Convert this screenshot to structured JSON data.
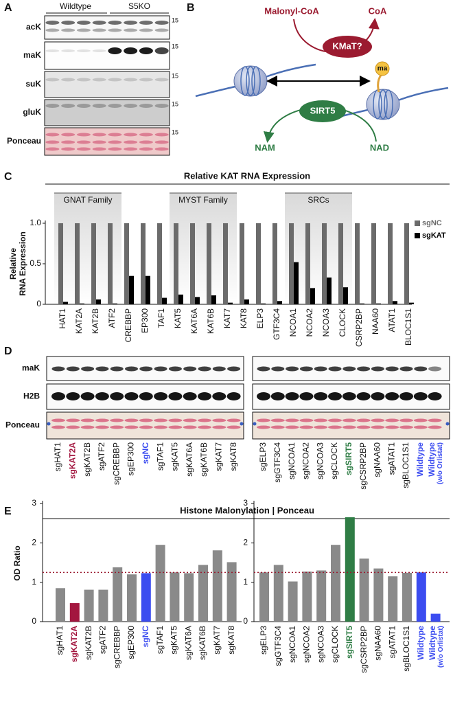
{
  "panel_a": {
    "label": "A",
    "groups": [
      "Wildtype",
      "S5KO"
    ],
    "rows": [
      "acK",
      "maK",
      "suK",
      "gluK",
      "Ponceau"
    ],
    "size_markers": [
      15,
      15,
      15,
      15,
      15
    ]
  },
  "panel_b": {
    "label": "B",
    "donor": "Malonyl-CoA",
    "byproduct": "CoA",
    "writer": "KMaT?",
    "modification": "ma",
    "eraser": "SIRT5",
    "eraser_product": "NAM",
    "eraser_cofactor": "NAD"
  },
  "panel_d": {
    "label": "D",
    "rows": [
      "maK",
      "H2B",
      "Ponceau"
    ],
    "lanes": [
      [
        "sgHAT1",
        "sgKAT2A",
        "sgKAT2B",
        "sgATF2",
        "sgCREBBP",
        "sgEP300",
        "sgNC",
        "sgTAF1",
        "sgKAT5",
        "sgKAT6A",
        "sgKAT6B",
        "sgKAT7",
        "sgKAT8"
      ],
      [
        "sgELP3",
        "sgGTF3C4",
        "sgNCOA1",
        "sgNCOA2",
        "sgNCOA3",
        "sgCLOCK",
        "sgSIRT5",
        "sgCSRP2BP",
        "sgNAA60",
        "sgATAT1",
        "sgBLOC1S1",
        "Wildtype",
        [
          "Wildtype",
          "(w/o Orlistat)"
        ]
      ]
    ],
    "lane_colors": [
      [
        "#111111",
        "#a3163f",
        "#111111",
        "#111111",
        "#111111",
        "#111111",
        "#3b4cf0",
        "#111111",
        "#111111",
        "#111111",
        "#111111",
        "#111111",
        "#111111"
      ],
      [
        "#111111",
        "#111111",
        "#111111",
        "#111111",
        "#111111",
        "#111111",
        "#2f7d45",
        "#111111",
        "#111111",
        "#111111",
        "#111111",
        "#3b4cf0",
        "#3b4cf0"
      ]
    ]
  },
  "chart_data": [
    {
      "type": "bar",
      "panel_label": "C",
      "title": "Relative KAT RNA Expression",
      "ylabel": [
        "Relative",
        "RNA Expression"
      ],
      "group_labels": [
        "GNAT Family",
        "MYST Family",
        "SRCs"
      ],
      "categories": [
        "HAT1",
        "KAT2A",
        "KAT2B",
        "ATF2",
        "CREBBP",
        "EP300",
        "TAF1",
        "KAT5",
        "KAT6A",
        "KAT6B",
        "KAT7",
        "KAT8",
        "ELP3",
        "GTF3C4",
        "NCOA1",
        "NCOA2",
        "NCOA3",
        "CLOCK",
        "CSRP2BP",
        "NAA60",
        "ATAT1",
        "BLOC1S1"
      ],
      "series": [
        {
          "name": "sgNC",
          "color": "#6b6b6b",
          "values": [
            1,
            1,
            1,
            1,
            1,
            1,
            1,
            1,
            1,
            1,
            1,
            1,
            1,
            1,
            1,
            1,
            1,
            1,
            1,
            1,
            1,
            1
          ]
        },
        {
          "name": "sgKAT",
          "color": "#000000",
          "values": [
            0.03,
            0.01,
            0.06,
            0.01,
            0.35,
            0.35,
            0.08,
            0.12,
            0.09,
            0.11,
            0.02,
            0.06,
            0.01,
            0.04,
            0.52,
            0.2,
            0.33,
            0.21,
            0.01,
            0.01,
            0.04,
            0.02
          ]
        }
      ],
      "ylim": [
        0,
        1
      ],
      "yticks": [
        0,
        0.5,
        {
          "value": 1,
          "label": "1.0"
        }
      ],
      "legend": "right"
    },
    {
      "type": "bar",
      "panel_label": "E",
      "title": "Histone Malonylation | Ponceau",
      "ylabel": "OD Ratio",
      "categories": [
        "sgHAT1",
        "sgKAT2A",
        "sgKAT2B",
        "sgATF2",
        "sgCREBBP",
        "sgEP300",
        "sgNC",
        "sgTAF1",
        "sgKAT5",
        "sgKAT6A",
        "sgKAT6B",
        "sgKAT7",
        "sgKAT8"
      ],
      "values": [
        0.85,
        0.47,
        0.81,
        0.81,
        1.38,
        1.2,
        1.23,
        1.95,
        1.25,
        1.23,
        1.44,
        1.81,
        1.51
      ],
      "colors": [
        "#8a8a8a",
        "#a3163f",
        "#8a8a8a",
        "#8a8a8a",
        "#8a8a8a",
        "#8a8a8a",
        "#3b4cf0",
        "#8a8a8a",
        "#8a8a8a",
        "#8a8a8a",
        "#8a8a8a",
        "#8a8a8a",
        "#8a8a8a"
      ],
      "ylim": [
        0,
        3
      ],
      "yticks": [
        0,
        1,
        2,
        3
      ],
      "reference_line": 1.25,
      "reference_color": "#9b1b30"
    },
    {
      "type": "bar",
      "categories": [
        "sgELP3",
        "sgGTF3C4",
        "sgNCOA1",
        "sgNCOA2",
        "sgNCOA3",
        "sgCLOCK",
        "sgSIRT5",
        "sgCSRP2BP",
        "sgNAA60",
        "sgATAT1",
        "sgBLOC1S1",
        "Wildtype",
        [
          "Wildtype",
          "(w/o Orlistat)"
        ]
      ],
      "values": [
        1.25,
        1.44,
        1.02,
        1.27,
        1.3,
        1.95,
        2.65,
        1.6,
        1.35,
        1.15,
        1.24,
        1.25,
        0.2
      ],
      "colors": [
        "#8a8a8a",
        "#8a8a8a",
        "#8a8a8a",
        "#8a8a8a",
        "#8a8a8a",
        "#8a8a8a",
        "#2f7d45",
        "#8a8a8a",
        "#8a8a8a",
        "#8a8a8a",
        "#8a8a8a",
        "#3b4cf0",
        "#3b4cf0"
      ],
      "ylim": [
        0,
        3
      ],
      "yticks": [
        0,
        1,
        2,
        3
      ],
      "reference_line": 1.25,
      "reference_color": "#9b1b30"
    }
  ]
}
